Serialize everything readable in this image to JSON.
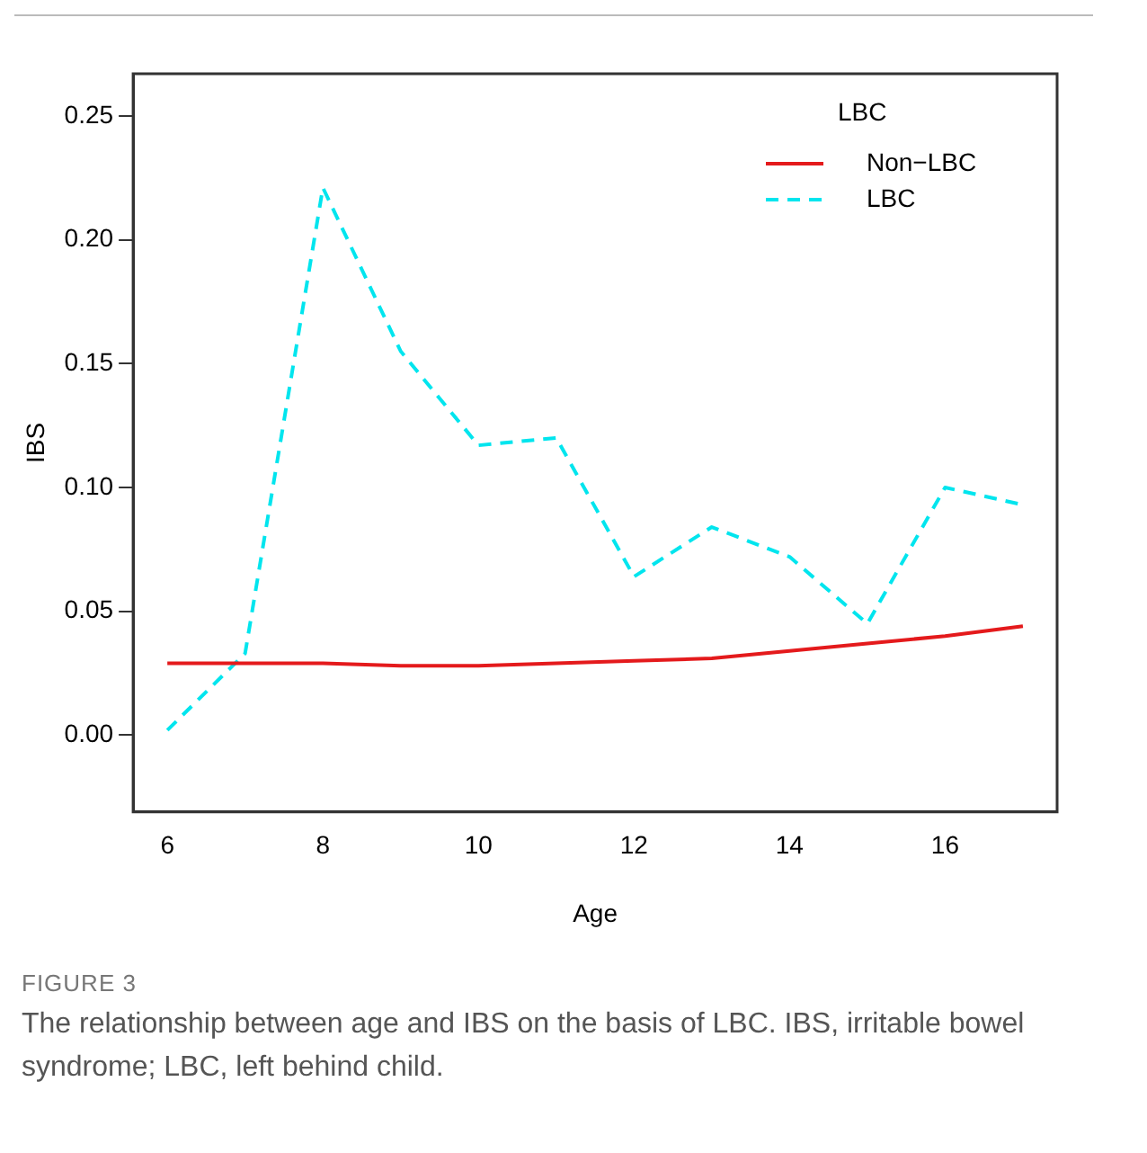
{
  "chart_data": {
    "type": "line",
    "xlabel": "Age",
    "ylabel": "IBS",
    "legend_title": "LBC",
    "legend": "top right",
    "grid": false,
    "marker": "none",
    "x": [
      6,
      7,
      8,
      9,
      10,
      11,
      12,
      13,
      14,
      15,
      16,
      17
    ],
    "xlim": [
      5.56,
      17.44
    ],
    "xticks": [
      6,
      8,
      10,
      12,
      14,
      16
    ],
    "ylim": [
      -0.031,
      0.267
    ],
    "yticks": [
      {
        "value": 0,
        "label": "0.00"
      },
      0.05,
      {
        "value": 0.1,
        "label": "0.10"
      },
      0.15,
      {
        "value": 0.2,
        "label": "0.20"
      },
      0.25
    ],
    "series": [
      {
        "name": "Non−LBC",
        "color": "#e41a1c",
        "line_style": "solid",
        "values": [
          0.029,
          0.029,
          0.029,
          0.028,
          0.028,
          0.029,
          0.03,
          0.031,
          0.034,
          0.037,
          0.04,
          0.044
        ]
      },
      {
        "name": "LBC",
        "color": "#00e5ee",
        "line_style": "dashed",
        "values": [
          0.002,
          0.033,
          0.221,
          0.155,
          0.117,
          0.12,
          0.064,
          0.084,
          0.072,
          0.045,
          0.1,
          0.093
        ]
      }
    ],
    "annotations": [
      "FIGURE 3",
      "The relationship between age and IBS on the basis of LBC. IBS, irritable bowel syndrome; LBC, left behind child."
    ]
  }
}
